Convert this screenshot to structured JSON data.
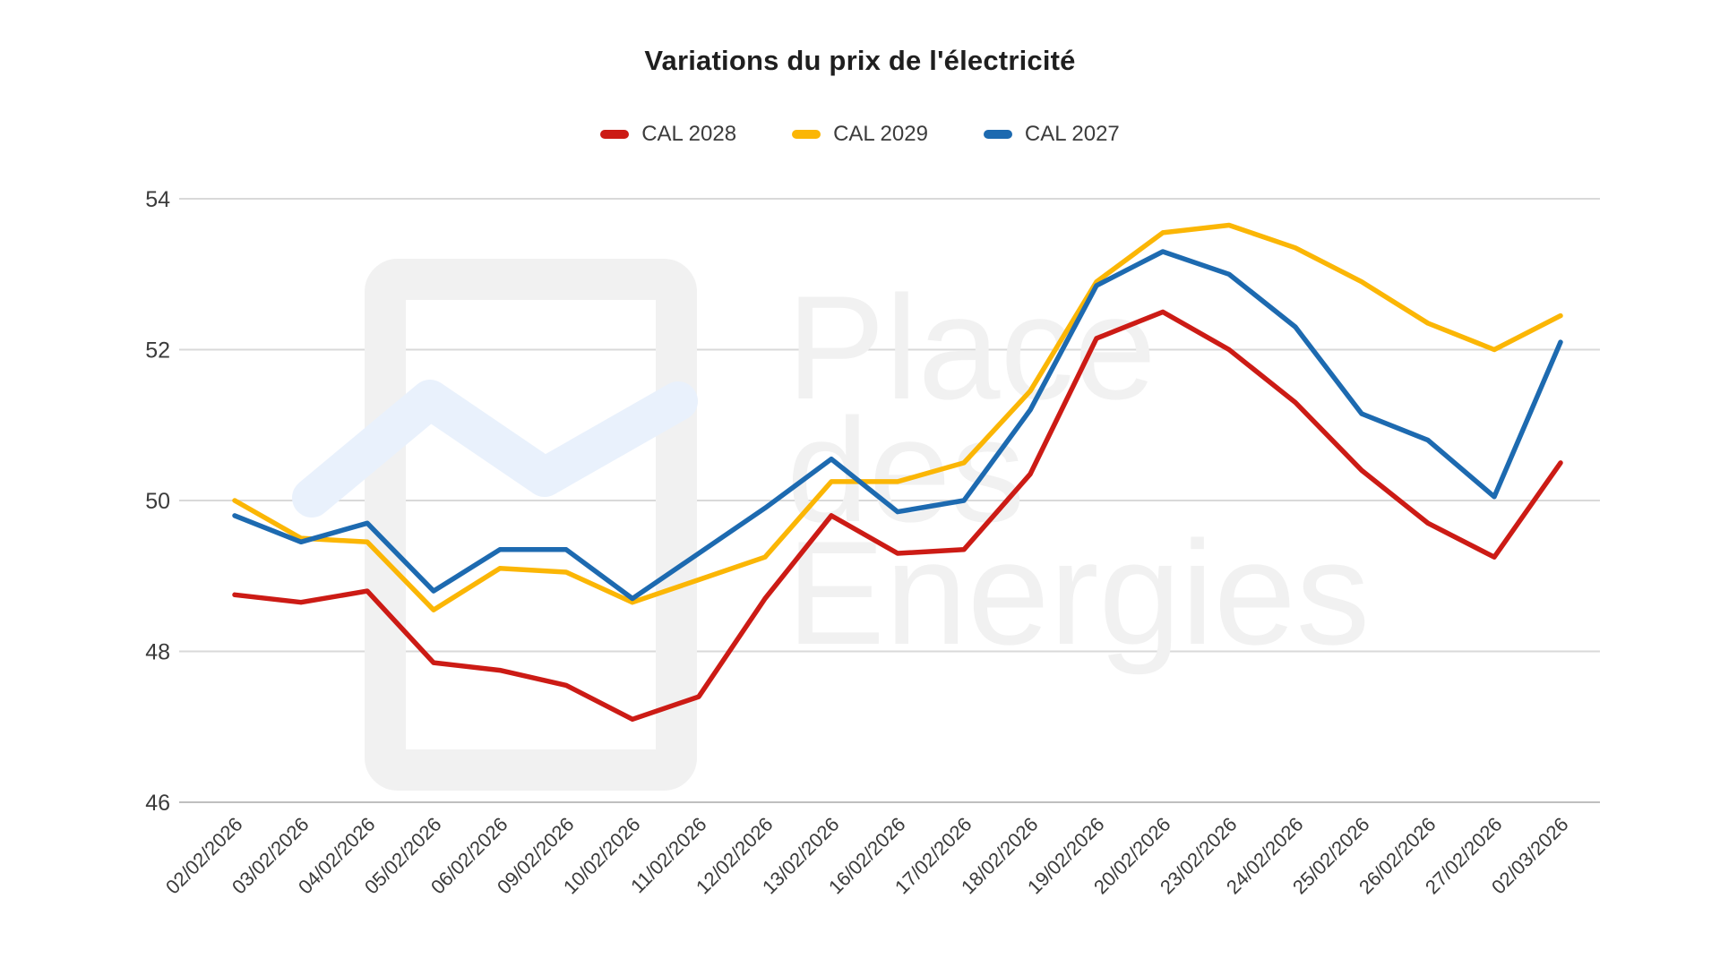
{
  "title": "Variations du prix de l'électricité",
  "watermark": {
    "lines": [
      "Place",
      "des",
      "Energies"
    ]
  },
  "chart_data": {
    "type": "line",
    "x": [
      "02/02/2026",
      "03/02/2026",
      "04/02/2026",
      "05/02/2026",
      "06/02/2026",
      "09/02/2026",
      "10/02/2026",
      "11/02/2026",
      "12/02/2026",
      "13/02/2026",
      "16/02/2026",
      "17/02/2026",
      "18/02/2026",
      "19/02/2026",
      "20/02/2026",
      "23/02/2026",
      "24/02/2026",
      "25/02/2026",
      "26/02/2026",
      "27/02/2026",
      "02/03/2026"
    ],
    "series": [
      {
        "name": "CAL 2028",
        "color": "#cc1b15",
        "values": [
          48.75,
          48.65,
          48.8,
          47.85,
          47.75,
          47.55,
          47.1,
          47.4,
          48.7,
          49.8,
          49.3,
          49.35,
          50.35,
          52.15,
          52.5,
          52.0,
          51.3,
          50.4,
          49.7,
          49.25,
          50.5
        ]
      },
      {
        "name": "CAL 2029",
        "color": "#fbb605",
        "values": [
          50.0,
          49.5,
          49.45,
          48.55,
          49.1,
          49.05,
          48.65,
          48.95,
          49.25,
          50.25,
          50.25,
          50.5,
          51.45,
          52.9,
          53.55,
          53.65,
          53.35,
          52.9,
          52.35,
          52.0,
          52.45
        ]
      },
      {
        "name": "CAL 2027",
        "color": "#1d6ab0",
        "values": [
          49.8,
          49.45,
          49.7,
          48.8,
          49.35,
          49.35,
          48.7,
          49.3,
          49.9,
          50.55,
          49.85,
          50.0,
          51.2,
          52.85,
          53.3,
          53.0,
          52.3,
          51.15,
          50.8,
          50.05,
          52.1
        ]
      }
    ],
    "ylim": [
      46,
      54
    ],
    "yticks": [
      54,
      52,
      50,
      48,
      46
    ],
    "grid": true,
    "legend_position": "top",
    "grid_color": "#d9d9d9",
    "baseline_color": "#bfbfbf",
    "axis_text_color": "#3b3b3b",
    "watermark_gray": "#f1f1f1",
    "watermark_blue": "#e9f1fc"
  }
}
